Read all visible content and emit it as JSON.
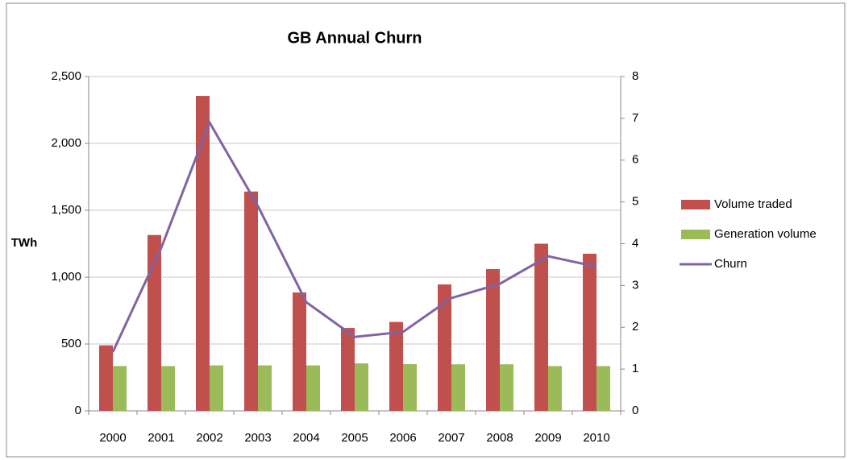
{
  "chart_data": {
    "type": "bar-line-combo",
    "title": "GB Annual Churn",
    "y_label": "TWh",
    "categories": [
      "2000",
      "2001",
      "2002",
      "2003",
      "2004",
      "2005",
      "2006",
      "2007",
      "2008",
      "2009",
      "2010"
    ],
    "series": [
      {
        "name": "Volume traded",
        "type": "bar",
        "color": "#c0504d",
        "values": [
          490,
          1315,
          2355,
          1640,
          885,
          620,
          665,
          945,
          1060,
          1250,
          1175
        ]
      },
      {
        "name": "Generation volume",
        "type": "bar",
        "color": "#9bbb59",
        "values": [
          335,
          335,
          340,
          340,
          340,
          355,
          350,
          348,
          348,
          335,
          335
        ]
      },
      {
        "name": "Churn",
        "type": "line",
        "axis": "y2",
        "color": "#8064a2",
        "values": [
          1.41,
          3.9,
          6.9,
          4.9,
          2.6,
          1.77,
          1.89,
          2.7,
          3.04,
          3.7,
          3.45
        ]
      }
    ],
    "ylim": [
      0,
      2500
    ],
    "yticks": [
      0,
      500,
      {
        "value": 1000,
        "label": "1,000"
      },
      {
        "value": 1500,
        "label": "1,500"
      },
      {
        "value": 2000,
        "label": "2,000"
      },
      {
        "value": 2500,
        "label": "2,500"
      }
    ],
    "y2lim": [
      0,
      8
    ],
    "y2ticks": [
      0,
      1,
      2,
      3,
      4,
      5,
      6,
      7,
      8
    ],
    "grid": true,
    "legend": "right"
  }
}
